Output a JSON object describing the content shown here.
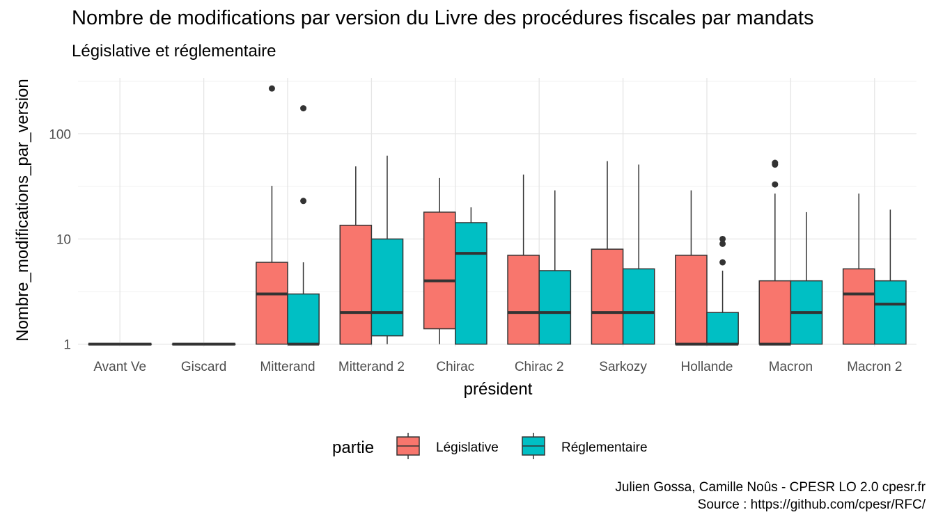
{
  "chart_data": {
    "type": "boxplot",
    "title": "Nombre de modifications par version du Livre des procédures fiscales par mandats",
    "subtitle": "Législative et réglementaire",
    "xlabel": "président",
    "ylabel": "Nombre_modifications_par_version",
    "y_scale": "log10",
    "ylim": [
      0.95,
      340
    ],
    "y_ticks": [
      1,
      10,
      100
    ],
    "grid": true,
    "categories": [
      "Avant Ve",
      "Giscard",
      "Mitterand",
      "Mitterand 2",
      "Chirac",
      "Chirac 2",
      "Sarkozy",
      "Hollande",
      "Macron",
      "Macron 2"
    ],
    "legend": {
      "title": "partie",
      "position": "bottom"
    },
    "series": [
      {
        "name": "Législative",
        "color": "#F8766D",
        "boxes": [
          {
            "min": 1,
            "q1": 1,
            "median": 1,
            "q3": 1,
            "max": 1,
            "outliers": []
          },
          {
            "min": 1,
            "q1": 1,
            "median": 1,
            "q3": 1,
            "max": 1,
            "outliers": []
          },
          {
            "min": 1,
            "q1": 1,
            "median": 3,
            "q3": 6,
            "max": 32,
            "outliers": [
              270
            ]
          },
          {
            "min": 1,
            "q1": 1,
            "median": 2,
            "q3": 13.5,
            "max": 49,
            "outliers": []
          },
          {
            "min": 1,
            "q1": 1.4,
            "median": 4,
            "q3": 18,
            "max": 38,
            "outliers": []
          },
          {
            "min": 1,
            "q1": 1,
            "median": 2,
            "q3": 7,
            "max": 41,
            "outliers": []
          },
          {
            "min": 1,
            "q1": 1,
            "median": 2,
            "q3": 8,
            "max": 55,
            "outliers": []
          },
          {
            "min": 1,
            "q1": 1,
            "median": 1,
            "q3": 7,
            "max": 29,
            "outliers": []
          },
          {
            "min": 1,
            "q1": 1,
            "median": 1,
            "q3": 4,
            "max": 27,
            "outliers": [
              33,
              51,
              53
            ]
          },
          {
            "min": 1,
            "q1": 1,
            "median": 3,
            "q3": 5.2,
            "max": 27,
            "outliers": []
          }
        ]
      },
      {
        "name": "Réglementaire",
        "color": "#00BFC4",
        "boxes": [
          {
            "min": 1,
            "q1": 1,
            "median": 1,
            "q3": 1,
            "max": 1,
            "outliers": []
          },
          {
            "min": 1,
            "q1": 1,
            "median": 1,
            "q3": 1,
            "max": 1,
            "outliers": []
          },
          {
            "min": 1,
            "q1": 1,
            "median": 1,
            "q3": 3,
            "max": 6,
            "outliers": [
              23,
              175
            ]
          },
          {
            "min": 1,
            "q1": 1.2,
            "median": 2,
            "q3": 10,
            "max": 62,
            "outliers": []
          },
          {
            "min": 1,
            "q1": 1,
            "median": 7.3,
            "q3": 14.3,
            "max": 20,
            "outliers": []
          },
          {
            "min": 1,
            "q1": 1,
            "median": 2,
            "q3": 5,
            "max": 29,
            "outliers": []
          },
          {
            "min": 1,
            "q1": 1,
            "median": 2,
            "q3": 5.2,
            "max": 51,
            "outliers": []
          },
          {
            "min": 1,
            "q1": 1,
            "median": 1,
            "q3": 2,
            "max": 5,
            "outliers": [
              6,
              9,
              10
            ]
          },
          {
            "min": 1,
            "q1": 1,
            "median": 2,
            "q3": 4,
            "max": 18,
            "outliers": []
          },
          {
            "min": 1,
            "q1": 1,
            "median": 2.4,
            "q3": 4,
            "max": 19,
            "outliers": []
          }
        ]
      }
    ]
  },
  "caption": {
    "line1": "Julien Gossa, Camille Noûs - CPESR LO 2.0 cpesr.fr",
    "line2": "Source : https://github.com/cpesr/RFC/"
  }
}
